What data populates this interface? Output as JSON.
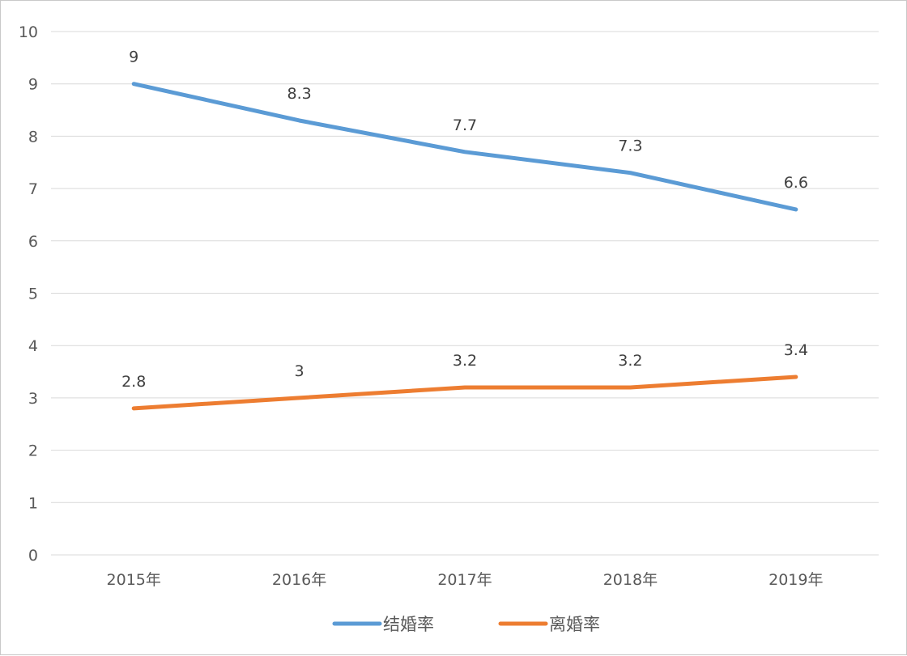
{
  "chart_data": {
    "type": "line",
    "categories": [
      "2015年",
      "2016年",
      "2017年",
      "2018年",
      "2019年"
    ],
    "series": [
      {
        "name": "结婚率",
        "values": [
          9,
          8.3,
          7.7,
          7.3,
          6.6
        ],
        "color": "#5B9BD5"
      },
      {
        "name": "离婚率",
        "values": [
          2.8,
          3,
          3.2,
          3.2,
          3.4
        ],
        "color": "#ED7D31"
      }
    ],
    "title": "",
    "xlabel": "",
    "ylabel": "",
    "ylim": [
      0,
      10
    ],
    "yticks": [
      0,
      1,
      2,
      3,
      4,
      5,
      6,
      7,
      8,
      9,
      10
    ],
    "grid": true,
    "legend": "bottom",
    "data_labels": true
  }
}
